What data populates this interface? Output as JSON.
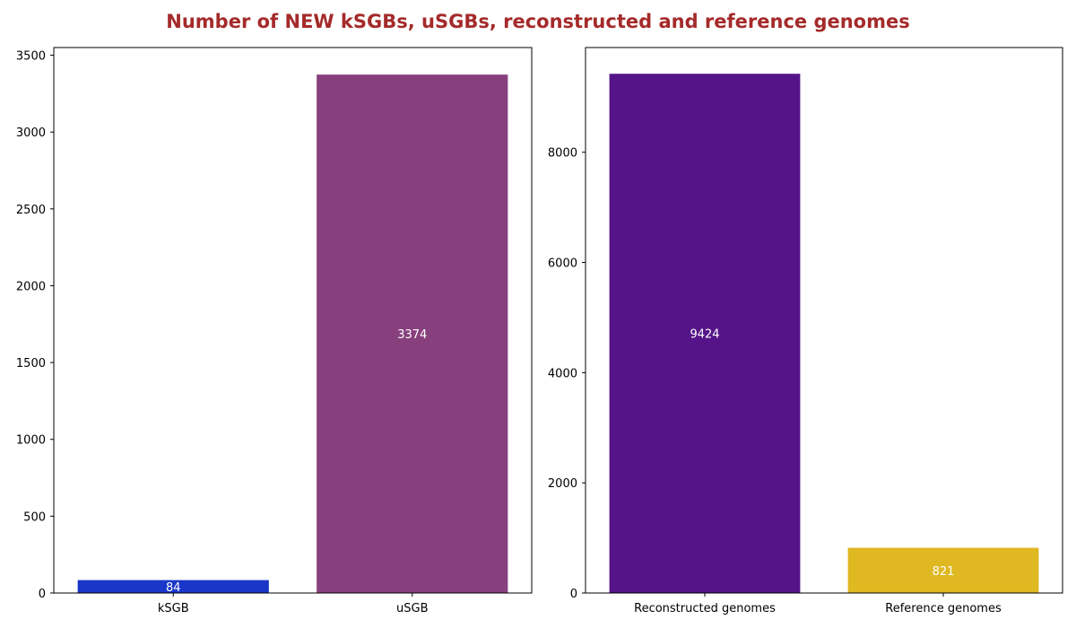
{
  "title": "Number of NEW kSGBs, uSGBs, reconstructed and reference genomes",
  "title_color": "#a52a2a",
  "chart_data": [
    {
      "type": "bar",
      "categories": [
        "kSGB",
        "uSGB"
      ],
      "values": [
        84,
        3374
      ],
      "data_labels": [
        "84",
        "3374"
      ],
      "colors": [
        "#1a36c9",
        "#87407d"
      ],
      "ylim": [
        0,
        3550
      ],
      "yticks": [
        0,
        500,
        1000,
        1500,
        2000,
        2500,
        3000,
        3500
      ],
      "ytick_labels": [
        "0",
        "500",
        "1000",
        "1500",
        "2000",
        "2500",
        "3000",
        "3500"
      ],
      "xlabel": "",
      "ylabel": "",
      "grid": false
    },
    {
      "type": "bar",
      "categories": [
        "Reconstructed genomes",
        "Reference genomes"
      ],
      "values": [
        9424,
        821
      ],
      "data_labels": [
        "9424",
        "821"
      ],
      "colors": [
        "#551589",
        "#dfb822"
      ],
      "ylim": [
        0,
        9900
      ],
      "yticks": [
        0,
        2000,
        4000,
        6000,
        8000
      ],
      "ytick_labels": [
        "0",
        "2000",
        "4000",
        "6000",
        "8000"
      ],
      "xlabel": "",
      "ylabel": "",
      "grid": false
    }
  ]
}
